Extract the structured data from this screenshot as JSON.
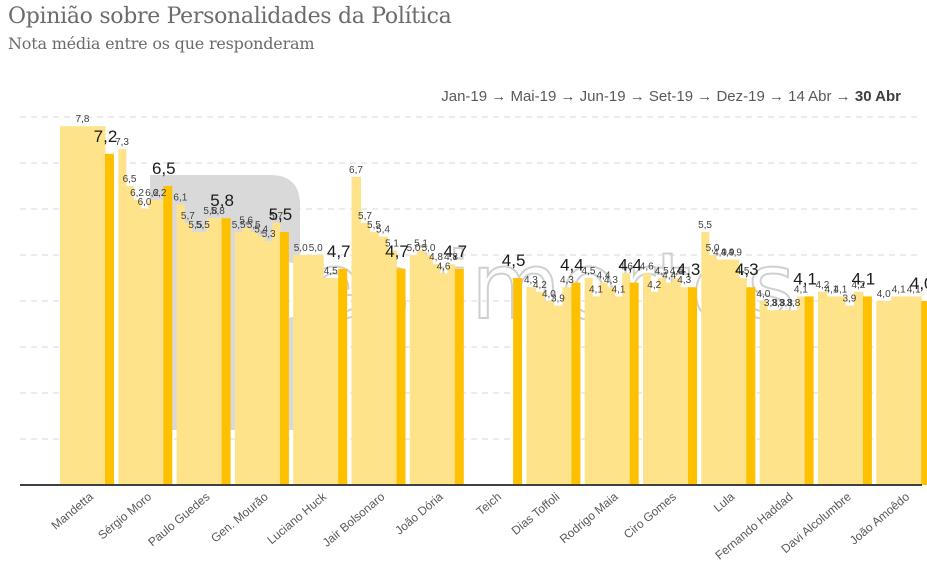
{
  "title": "Opinião sobre Personalidades da Política",
  "subtitle": "Nota média entre os que responderam",
  "legend": {
    "periods": [
      "Jan-19",
      "Mai-19",
      "Jun-19",
      "Set-19",
      "Dez-19",
      "14 Abr",
      "30 Abr"
    ],
    "arrow": "→",
    "highlight": "30 Abr"
  },
  "watermark": "estimortos",
  "colors": {
    "past": "#ffe38a",
    "current": "#ffc000",
    "grid": "#d9d9d9",
    "axis": "#404040"
  },
  "chart_data": {
    "type": "bar",
    "title": "Opinião sobre Personalidades da Política",
    "subtitle": "Nota média entre os que responderam",
    "xlabel": "",
    "ylabel": "",
    "ylim": [
      0,
      8
    ],
    "grid": true,
    "legend_position": "top-right",
    "series_names": [
      "Jan-19",
      "Mai-19",
      "Jun-19",
      "Set-19",
      "Dez-19",
      "14 Abr",
      "30 Abr"
    ],
    "categories": [
      "Mandetta",
      "Sérgio Moro",
      "Paulo Guedes",
      "Gen. Mourão",
      "Luciano Huck",
      "Jair Bolsonaro",
      "João Dória",
      "Teich",
      "Dias Toffoli",
      "Rodrigo Maia",
      "Ciro Gomes",
      "Lula",
      "Fernando Haddad",
      "Davi Alcolumbre",
      "João Amoêdo"
    ],
    "series": [
      {
        "name": "Jan-19",
        "values": [
          null,
          7.3,
          6.1,
          5.5,
          5.0,
          6.7,
          5.0,
          null,
          4.3,
          4.5,
          4.6,
          5.5,
          4.0,
          4.2,
          4.0
        ]
      },
      {
        "name": "Mai-19",
        "values": [
          null,
          6.5,
          5.7,
          5.6,
          5.0,
          5.7,
          5.1,
          null,
          4.2,
          4.1,
          4.2,
          5.0,
          3.8,
          4.1,
          4.1
        ]
      },
      {
        "name": "Jun-19",
        "values": [
          null,
          6.2,
          5.5,
          5.5,
          null,
          5.5,
          5.0,
          null,
          4.0,
          4.4,
          4.5,
          4.9,
          3.8,
          4.1,
          4.1
        ]
      },
      {
        "name": "Set-19",
        "values": [
          null,
          6.0,
          5.5,
          5.4,
          null,
          5.4,
          4.8,
          null,
          3.9,
          4.3,
          4.4,
          4.9,
          3.8,
          3.9,
          null
        ]
      },
      {
        "name": "Dez-19",
        "values": [
          null,
          6.2,
          5.8,
          5.3,
          null,
          5.1,
          4.6,
          null,
          null,
          4.1,
          4.5,
          4.9,
          3.8,
          null,
          null
        ]
      },
      {
        "name": "14 Abr",
        "values": [
          7.8,
          6.2,
          5.8,
          5.7,
          4.5,
          null,
          4.8,
          null,
          4.3,
          4.6,
          4.3,
          4.5,
          4.1,
          4.2,
          null
        ]
      },
      {
        "name": "30 Abr",
        "values": [
          7.2,
          6.5,
          5.8,
          5.5,
          4.7,
          4.7,
          4.7,
          4.5,
          4.4,
          4.4,
          4.3,
          4.3,
          4.1,
          4.1,
          4.0
        ]
      }
    ],
    "value_labels": {
      "decimal_separator": ","
    }
  }
}
